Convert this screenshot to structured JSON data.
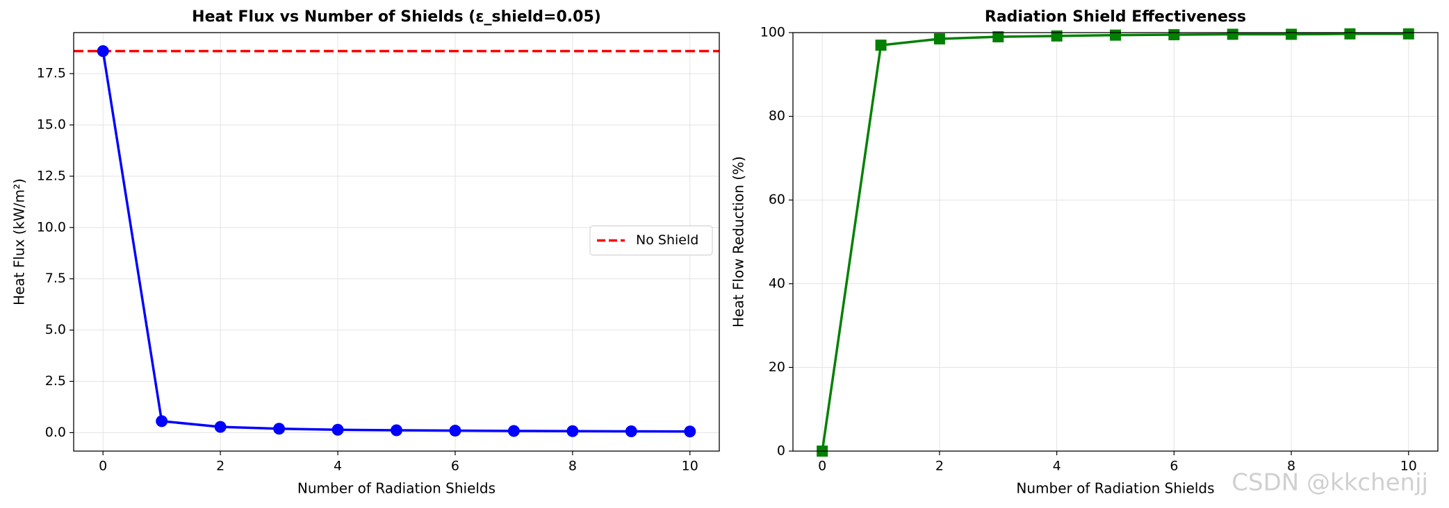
{
  "chart_data": [
    {
      "type": "line",
      "title": "Heat Flux vs Number of Shields (ε_shield=0.05)",
      "xlabel": "Number of Radiation Shields",
      "ylabel": "Heat Flux (kW/m²)",
      "x": [
        0,
        1,
        2,
        3,
        4,
        5,
        6,
        7,
        8,
        9,
        10
      ],
      "series": [
        {
          "color": "#0000ff",
          "marker": "circle",
          "values": [
            18.6,
            0.56,
            0.28,
            0.19,
            0.14,
            0.115,
            0.096,
            0.082,
            0.072,
            0.064,
            0.057
          ]
        }
      ],
      "reference_lines": [
        {
          "name": "No Shield",
          "value": 18.6,
          "color": "#ff0000",
          "style": "dashed"
        }
      ],
      "xlim": [
        -0.5,
        10.5
      ],
      "ylim": [
        -0.9,
        19.5
      ],
      "xticks": [
        0,
        2,
        4,
        6,
        8,
        10
      ],
      "yticks": [
        {
          "value": 0,
          "label": "0.0"
        },
        2.5,
        {
          "value": 5,
          "label": "5.0"
        },
        7.5,
        {
          "value": 10,
          "label": "10.0"
        },
        12.5,
        {
          "value": 15,
          "label": "15.0"
        },
        17.5
      ],
      "grid": true,
      "legend": "center right"
    },
    {
      "type": "line",
      "title": "Radiation Shield Effectiveness",
      "xlabel": "Number of Radiation Shields",
      "ylabel": "Heat Flow Reduction (%)",
      "x": [
        0,
        1,
        2,
        3,
        4,
        5,
        6,
        7,
        8,
        9,
        10
      ],
      "series": [
        {
          "color": "#008000",
          "marker": "square",
          "values": [
            0,
            97.0,
            98.5,
            99.0,
            99.2,
            99.4,
            99.5,
            99.6,
            99.6,
            99.7,
            99.7
          ]
        }
      ],
      "xlim": [
        -0.5,
        10.5
      ],
      "ylim": [
        0,
        100
      ],
      "xticks": [
        0,
        2,
        4,
        6,
        8,
        10
      ],
      "yticks": [
        0,
        20,
        40,
        60,
        80,
        100
      ],
      "grid": true
    }
  ],
  "watermark": "CSDN @kkchenjj"
}
